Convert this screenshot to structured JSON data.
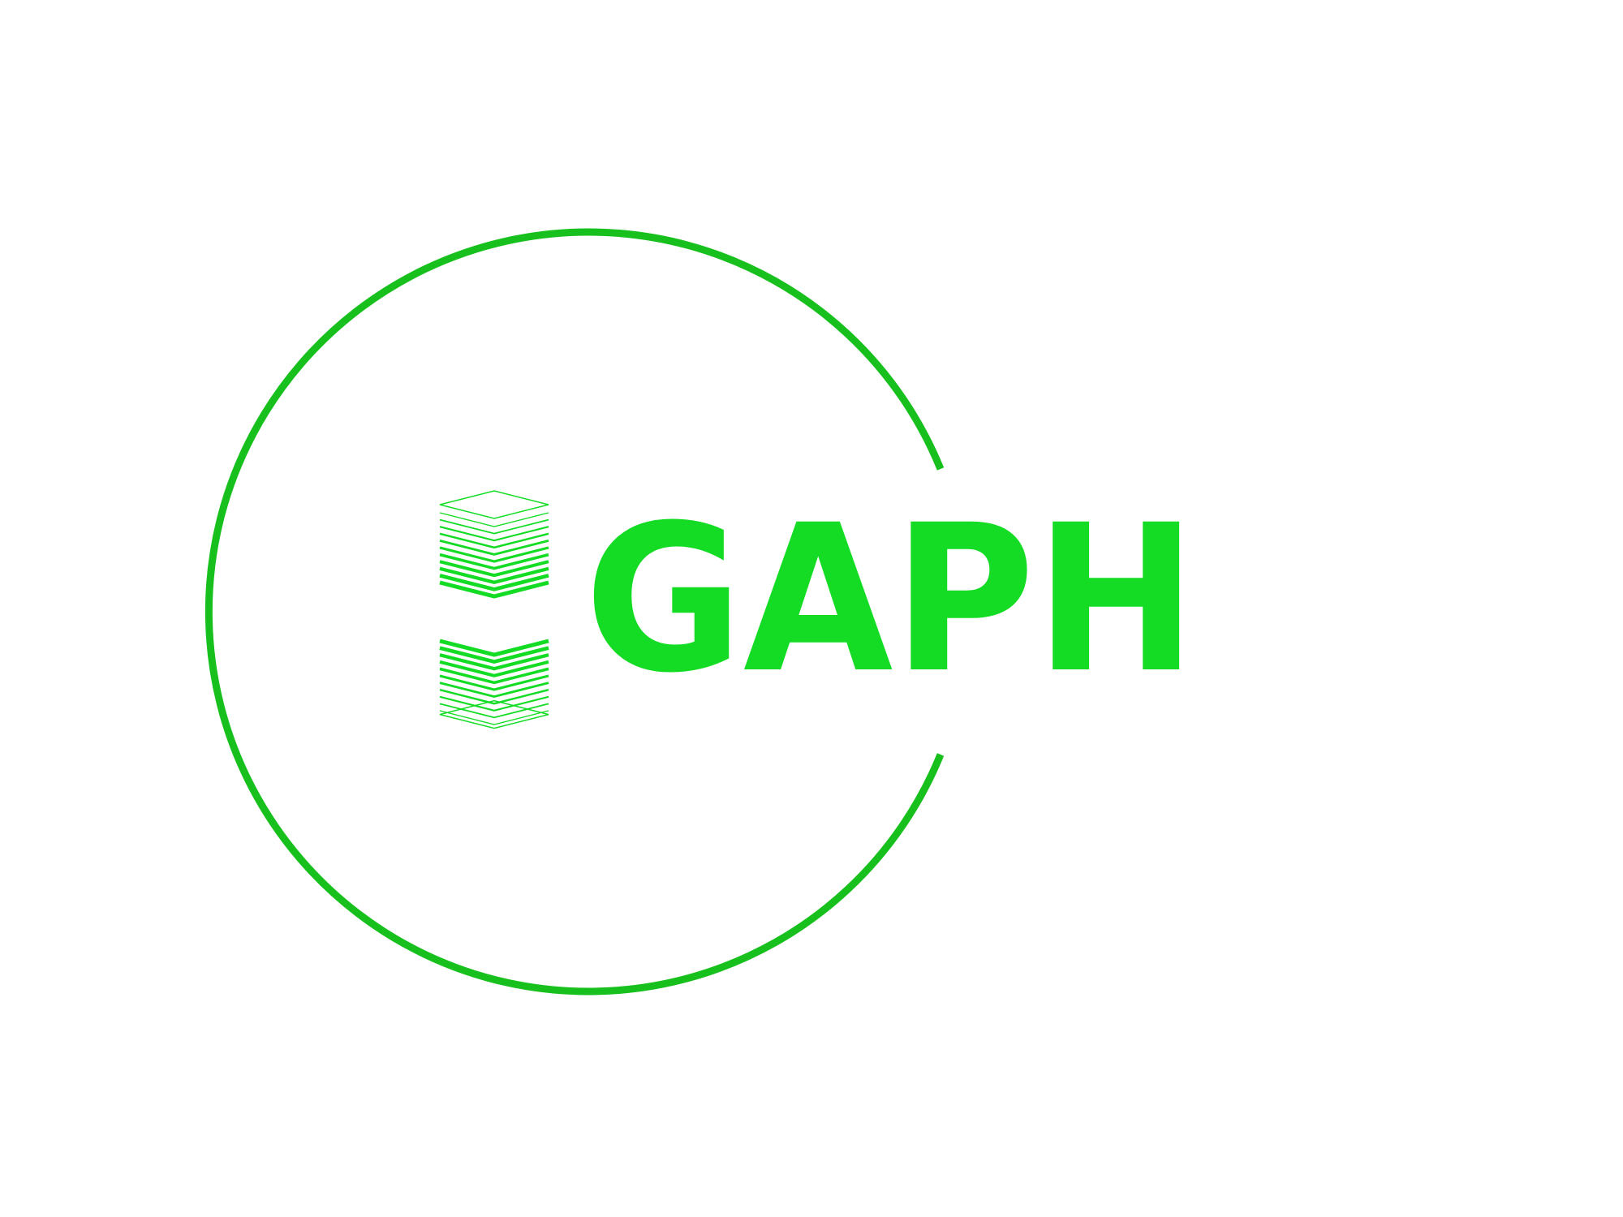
{
  "logo": {
    "wordmark": "GAPH",
    "colors": {
      "ring": "#17c01d",
      "text": "#14dc25",
      "stack": "#14dc25"
    },
    "icons": [
      "stacked-layers-icon-top",
      "stacked-layers-icon-bottom"
    ]
  }
}
